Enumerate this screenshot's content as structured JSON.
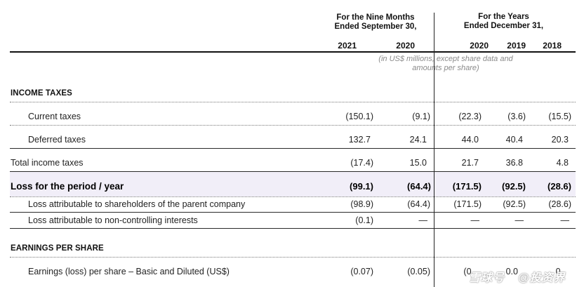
{
  "header": {
    "group_nine_months": [
      "For the Nine Months",
      "Ended September 30,"
    ],
    "group_years": [
      "For the Years",
      "Ended December 31,"
    ],
    "years": [
      "2021",
      "2020",
      "2020",
      "2019",
      "2018"
    ],
    "units_note": [
      "(in US$ millions, except share data and",
      "amounts per share)"
    ]
  },
  "sections": {
    "income_taxes": "INCOME TAXES",
    "eps": "EARNINGS PER SHARE"
  },
  "rows": [
    {
      "label": "Current taxes",
      "values": [
        "(150.1)",
        "(9.1)",
        "(22.3)",
        "(3.6)",
        "(15.5)"
      ]
    },
    {
      "label": "Deferred taxes",
      "values": [
        "132.7",
        "24.1",
        "44.0",
        "40.4",
        "20.3"
      ]
    },
    {
      "label": "Total income taxes",
      "values": [
        "(17.4)",
        "15.0",
        "21.7",
        "36.8",
        "4.8"
      ]
    },
    {
      "label": "Loss for the period / year",
      "values": [
        "(99.1)",
        "(64.4)",
        "(171.5)",
        "(92.5)",
        "(28.6)"
      ]
    },
    {
      "label": "Loss attributable to shareholders of the parent company",
      "values": [
        "(98.9)",
        "(64.4)",
        "(171.5)",
        "(92.5)",
        "(28.6)"
      ]
    },
    {
      "label": "Loss attributable to non-controlling interests",
      "values": [
        "(0.1)",
        "—",
        "—",
        "—",
        "—"
      ]
    },
    {
      "label": "Earnings (loss) per share – Basic and Diluted (US$)",
      "values": [
        "(0.07)",
        "(0.05)",
        "(0.",
        "0.0",
        "0."
      ]
    }
  ],
  "watermark": [
    "雪球号",
    "@投资界"
  ]
}
